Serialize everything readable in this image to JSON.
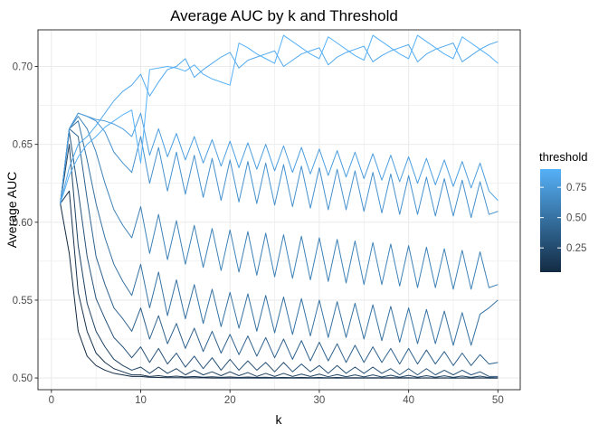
{
  "chart_data": {
    "type": "line",
    "title": "Average AUC by k and Threshold",
    "xlabel": "k",
    "ylabel": "Average AUC",
    "xlim": [
      -1.5,
      52.5
    ],
    "ylim": [
      0.4925,
      0.7235
    ],
    "x_ticks": [
      0,
      10,
      20,
      30,
      40,
      50
    ],
    "y_ticks": [
      0.5,
      0.55,
      0.6,
      0.65,
      0.7
    ],
    "y_tick_labels": [
      "0.50",
      "0.55",
      "0.60",
      "0.65",
      "0.70"
    ],
    "grid": true,
    "legend": {
      "title": "threshold",
      "position": "right",
      "type": "colorbar",
      "range": [
        0.05,
        0.9
      ],
      "breaks": [
        0.25,
        0.5,
        0.75
      ],
      "break_labels": [
        "0.25",
        "0.50",
        "0.75"
      ],
      "low_color": "#132B43",
      "high_color": "#56B1F7"
    },
    "x": [
      1,
      2,
      3,
      4,
      5,
      6,
      7,
      8,
      9,
      10,
      11,
      12,
      13,
      14,
      15,
      16,
      17,
      18,
      19,
      20,
      21,
      22,
      23,
      24,
      25,
      26,
      27,
      28,
      29,
      30,
      31,
      32,
      33,
      34,
      35,
      36,
      37,
      38,
      39,
      40,
      41,
      42,
      43,
      44,
      45,
      46,
      47,
      48,
      49,
      50
    ],
    "series": [
      {
        "threshold": 0.05,
        "values": [
          0.612,
          0.58,
          0.53,
          0.514,
          0.508,
          0.505,
          0.503,
          0.502,
          0.501,
          0.501,
          0.5005,
          0.5003,
          0.5002,
          0.5002,
          0.5001,
          0.5001,
          0.5001,
          0.5,
          0.5,
          0.5,
          0.5,
          0.5,
          0.5,
          0.5,
          0.5,
          0.5,
          0.5,
          0.5,
          0.5,
          0.5,
          0.5,
          0.5,
          0.5,
          0.5,
          0.5,
          0.5,
          0.5,
          0.5,
          0.5,
          0.5,
          0.5,
          0.5,
          0.5,
          0.5,
          0.5,
          0.5,
          0.5,
          0.5,
          0.5,
          0.5
        ]
      },
      {
        "threshold": 0.1,
        "values": [
          0.612,
          0.62,
          0.555,
          0.53,
          0.516,
          0.51,
          0.506,
          0.504,
          0.502,
          0.502,
          0.501,
          0.5015,
          0.5008,
          0.5012,
          0.5006,
          0.501,
          0.5005,
          0.5008,
          0.5004,
          0.5007,
          0.5003,
          0.5006,
          0.5003,
          0.5005,
          0.5002,
          0.5004,
          0.5002,
          0.5004,
          0.5002,
          0.5003,
          0.5001,
          0.5003,
          0.5001,
          0.5002,
          0.5001,
          0.5002,
          0.5001,
          0.5002,
          0.5001,
          0.5002,
          0.5,
          0.5001,
          0.5,
          0.5001,
          0.5,
          0.5001,
          0.5,
          0.5001,
          0.5,
          0.5
        ]
      },
      {
        "threshold": 0.2,
        "values": [
          0.612,
          0.65,
          0.585,
          0.548,
          0.53,
          0.52,
          0.512,
          0.508,
          0.505,
          0.507,
          0.503,
          0.507,
          0.503,
          0.506,
          0.502,
          0.505,
          0.502,
          0.504,
          0.5015,
          0.504,
          0.5015,
          0.5035,
          0.501,
          0.503,
          0.501,
          0.503,
          0.501,
          0.5025,
          0.501,
          0.5025,
          0.5008,
          0.5022,
          0.5008,
          0.502,
          0.5007,
          0.502,
          0.5006,
          0.5018,
          0.5005,
          0.5017,
          0.5005,
          0.5015,
          0.5005,
          0.5014,
          0.5004,
          0.5013,
          0.5004,
          0.5012,
          0.5003,
          0.5002
        ]
      },
      {
        "threshold": 0.3,
        "values": [
          0.612,
          0.658,
          0.62,
          0.578,
          0.551,
          0.538,
          0.526,
          0.52,
          0.513,
          0.52,
          0.51,
          0.519,
          0.509,
          0.516,
          0.507,
          0.514,
          0.506,
          0.513,
          0.505,
          0.512,
          0.505,
          0.511,
          0.505,
          0.51,
          0.504,
          0.51,
          0.504,
          0.509,
          0.504,
          0.508,
          0.503,
          0.508,
          0.503,
          0.507,
          0.503,
          0.507,
          0.503,
          0.506,
          0.502,
          0.506,
          0.502,
          0.506,
          0.502,
          0.505,
          0.502,
          0.505,
          0.502,
          0.504,
          0.501,
          0.501
        ]
      },
      {
        "threshold": 0.4,
        "values": [
          0.612,
          0.66,
          0.655,
          0.615,
          0.578,
          0.56,
          0.545,
          0.538,
          0.53,
          0.545,
          0.525,
          0.54,
          0.522,
          0.535,
          0.519,
          0.532,
          0.517,
          0.53,
          0.516,
          0.528,
          0.515,
          0.527,
          0.514,
          0.526,
          0.513,
          0.525,
          0.512,
          0.524,
          0.511,
          0.523,
          0.511,
          0.522,
          0.51,
          0.521,
          0.51,
          0.52,
          0.51,
          0.519,
          0.509,
          0.519,
          0.509,
          0.518,
          0.509,
          0.517,
          0.508,
          0.516,
          0.508,
          0.515,
          0.509,
          0.51
        ]
      },
      {
        "threshold": 0.5,
        "values": [
          0.612,
          0.66,
          0.665,
          0.64,
          0.612,
          0.59,
          0.573,
          0.562,
          0.553,
          0.573,
          0.545,
          0.568,
          0.54,
          0.563,
          0.538,
          0.56,
          0.535,
          0.557,
          0.533,
          0.555,
          0.532,
          0.554,
          0.53,
          0.553,
          0.529,
          0.552,
          0.528,
          0.551,
          0.527,
          0.55,
          0.526,
          0.549,
          0.526,
          0.548,
          0.525,
          0.547,
          0.524,
          0.546,
          0.523,
          0.545,
          0.522,
          0.544,
          0.522,
          0.543,
          0.521,
          0.542,
          0.521,
          0.541,
          0.545,
          0.55
        ]
      },
      {
        "threshold": 0.6,
        "values": [
          0.612,
          0.66,
          0.668,
          0.66,
          0.645,
          0.625,
          0.608,
          0.598,
          0.59,
          0.61,
          0.58,
          0.605,
          0.576,
          0.601,
          0.573,
          0.598,
          0.571,
          0.596,
          0.569,
          0.595,
          0.568,
          0.594,
          0.566,
          0.593,
          0.565,
          0.592,
          0.564,
          0.591,
          0.563,
          0.59,
          0.562,
          0.589,
          0.561,
          0.588,
          0.56,
          0.587,
          0.56,
          0.586,
          0.559,
          0.585,
          0.558,
          0.584,
          0.558,
          0.583,
          0.557,
          0.582,
          0.557,
          0.581,
          0.558,
          0.56
        ]
      },
      {
        "threshold": 0.7,
        "values": [
          0.612,
          0.66,
          0.67,
          0.668,
          0.665,
          0.658,
          0.645,
          0.638,
          0.632,
          0.655,
          0.625,
          0.648,
          0.62,
          0.645,
          0.618,
          0.643,
          0.616,
          0.641,
          0.614,
          0.64,
          0.613,
          0.639,
          0.612,
          0.638,
          0.611,
          0.637,
          0.61,
          0.636,
          0.609,
          0.635,
          0.608,
          0.634,
          0.608,
          0.633,
          0.607,
          0.632,
          0.606,
          0.631,
          0.605,
          0.63,
          0.605,
          0.629,
          0.604,
          0.628,
          0.604,
          0.627,
          0.603,
          0.626,
          0.605,
          0.607
        ]
      },
      {
        "threshold": 0.78,
        "values": [
          0.612,
          0.66,
          0.67,
          0.668,
          0.666,
          0.665,
          0.663,
          0.66,
          0.655,
          0.67,
          0.643,
          0.66,
          0.642,
          0.657,
          0.64,
          0.655,
          0.638,
          0.653,
          0.636,
          0.652,
          0.635,
          0.651,
          0.634,
          0.65,
          0.633,
          0.649,
          0.632,
          0.648,
          0.631,
          0.647,
          0.63,
          0.646,
          0.629,
          0.645,
          0.628,
          0.644,
          0.627,
          0.643,
          0.626,
          0.642,
          0.625,
          0.641,
          0.624,
          0.64,
          0.623,
          0.639,
          0.622,
          0.638,
          0.62,
          0.614
        ]
      },
      {
        "threshold": 0.85,
        "values": [
          0.612,
          0.635,
          0.65,
          0.655,
          0.662,
          0.67,
          0.678,
          0.684,
          0.688,
          0.695,
          0.681,
          0.69,
          0.698,
          0.7,
          0.705,
          0.693,
          0.698,
          0.702,
          0.706,
          0.709,
          0.699,
          0.704,
          0.706,
          0.708,
          0.71,
          0.7,
          0.704,
          0.708,
          0.71,
          0.712,
          0.701,
          0.706,
          0.709,
          0.711,
          0.713,
          0.703,
          0.707,
          0.71,
          0.712,
          0.714,
          0.703,
          0.708,
          0.711,
          0.713,
          0.715,
          0.703,
          0.707,
          0.711,
          0.714,
          0.716
        ]
      },
      {
        "threshold": 0.9,
        "values": [
          0.612,
          0.63,
          0.642,
          0.65,
          0.655,
          0.661,
          0.665,
          0.669,
          0.672,
          0.638,
          0.698,
          0.699,
          0.7,
          0.699,
          0.697,
          0.701,
          0.695,
          0.692,
          0.69,
          0.688,
          0.715,
          0.712,
          0.708,
          0.705,
          0.702,
          0.72,
          0.716,
          0.712,
          0.708,
          0.705,
          0.719,
          0.715,
          0.711,
          0.707,
          0.704,
          0.72,
          0.716,
          0.712,
          0.708,
          0.705,
          0.72,
          0.716,
          0.712,
          0.708,
          0.705,
          0.719,
          0.715,
          0.711,
          0.707,
          0.702
        ]
      }
    ]
  }
}
